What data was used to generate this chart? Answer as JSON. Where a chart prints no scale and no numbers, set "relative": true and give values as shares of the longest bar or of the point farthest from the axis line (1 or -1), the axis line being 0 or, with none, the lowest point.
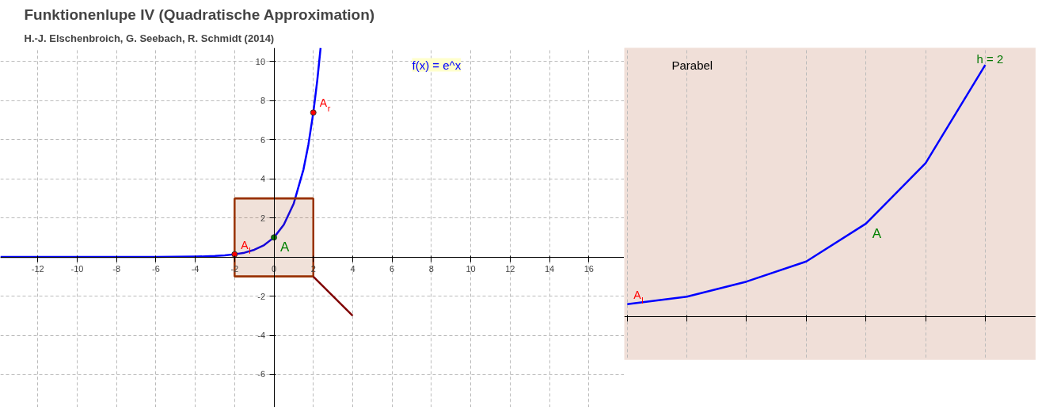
{
  "chart_data": [
    {
      "type": "line",
      "title": "Funktionenlupe IV  (Quadratische Approximation)",
      "subtitle": "H.-J. Elschenbroich, G. Seebach, R. Schmidt (2014)",
      "annotations": [
        "f(x) = e^x"
      ],
      "xlim": [
        -13.9,
        17.8
      ],
      "ylim": [
        -7.7,
        10.7
      ],
      "xticks": [
        -12,
        -10,
        -8,
        -6,
        -4,
        -2,
        0,
        2,
        4,
        6,
        8,
        10,
        12,
        14,
        16
      ],
      "yticks": [
        -6,
        -4,
        -2,
        2,
        4,
        6,
        8,
        10
      ],
      "grid": true,
      "line_style": "solid",
      "series": [
        {
          "color": "#0000ff",
          "x": [
            -13.9,
            -8,
            -6,
            -5,
            -4,
            -3,
            -2.5,
            -2,
            -1.5,
            -1,
            -0.5,
            0,
            0.5,
            1,
            1.5,
            1.75,
            2,
            2.2,
            2.37
          ],
          "values": [
            0,
            0,
            0,
            0.01,
            0.02,
            0.05,
            0.08,
            0.14,
            0.22,
            0.37,
            0.61,
            1,
            1.65,
            2.72,
            4.48,
            5.75,
            7.39,
            9.03,
            10.7
          ]
        },
        {
          "color": "#993300",
          "x": [
            -2,
            2
          ],
          "values": [
            3,
            3
          ],
          "lower": [
            -1,
            -1
          ],
          "upper": [
            3,
            3
          ]
        },
        {
          "color": "#993300",
          "x": [
            -2,
            2
          ],
          "values": [
            -1,
            -1
          ]
        },
        {
          "color": "#800000",
          "x": [
            2,
            4
          ],
          "values": [
            -1,
            -3
          ]
        },
        {
          "type": "scatter",
          "name": "A$_{l}$",
          "color": "#ff0000",
          "x": [
            -2
          ],
          "values": [
            0.14
          ]
        },
        {
          "type": "scatter",
          "name": "A",
          "color": "#008000",
          "x": [
            0
          ],
          "values": [
            1
          ]
        },
        {
          "type": "scatter",
          "name": "A$_{r}$",
          "color": "#ff0000",
          "x": [
            2
          ],
          "values": [
            7.39
          ]
        }
      ]
    },
    {
      "type": "line",
      "annotations": [
        "Parabel",
        "h = 2",
        {
          "text": "A$_{l}$",
          "y": 0.05
        },
        "A"
      ],
      "relative": true,
      "categories": [
        null,
        null,
        null,
        null,
        null,
        null,
        null
      ],
      "grid": "x",
      "line_style": "solid",
      "series": [
        {
          "color": "#0000ff",
          "values": [
            0.05,
            0.08,
            0.14,
            0.22,
            0.37,
            0.61,
            1
          ]
        }
      ]
    }
  ]
}
